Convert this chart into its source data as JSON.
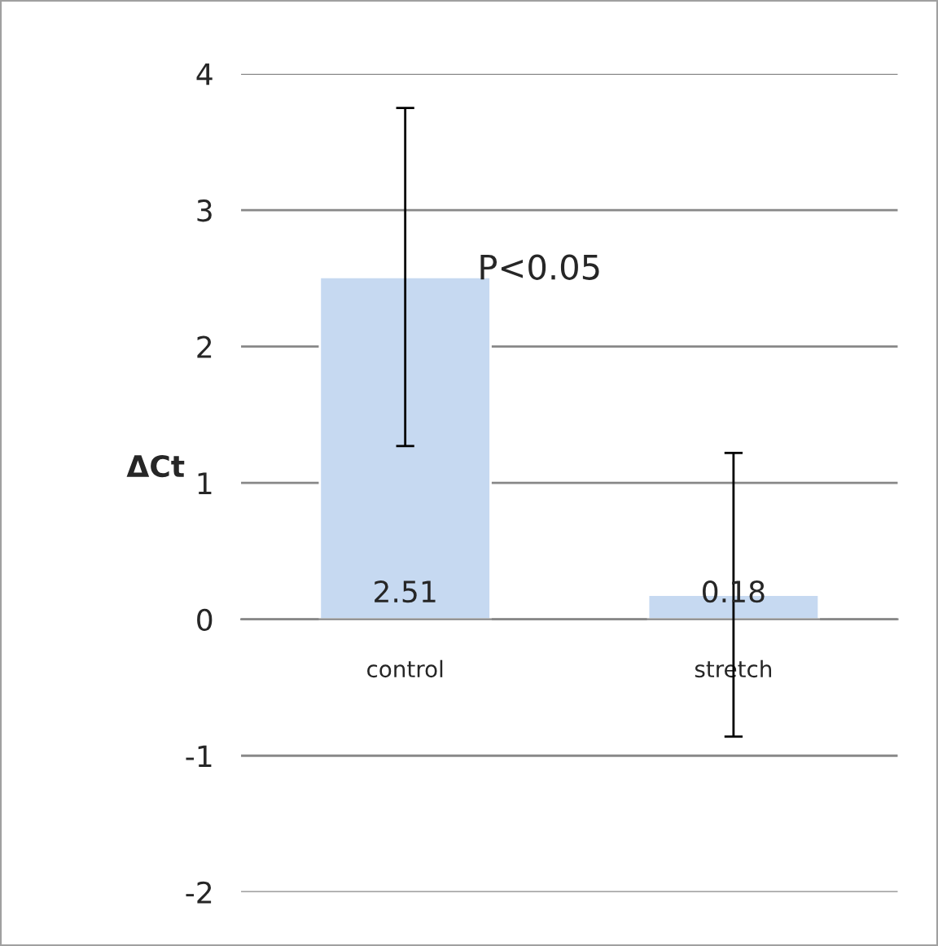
{
  "chart_data": {
    "type": "bar",
    "ylabel": "ΔCt",
    "categories": [
      "control",
      "stretch"
    ],
    "series": [
      {
        "color": "#c6d9f1",
        "values": [
          2.51,
          0.18
        ],
        "errors": [
          1.24,
          1.04
        ]
      }
    ],
    "data_labels": true,
    "annotations": [
      "P<0.05"
    ],
    "ylim": [
      -2,
      4
    ],
    "yticks": [
      -2,
      -1,
      0,
      1,
      2,
      3,
      4
    ],
    "grid": "y",
    "legend": false
  }
}
